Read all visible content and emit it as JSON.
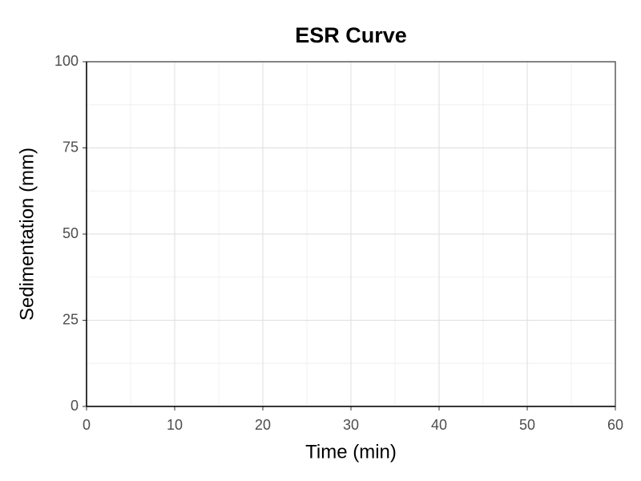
{
  "chart_data": {
    "type": "line",
    "title": "ESR Curve",
    "x_label": "Time (min)",
    "y_label": "Sedimentation (mm)",
    "xlim": [
      0,
      60
    ],
    "xticks": [
      0,
      10,
      20,
      30,
      40,
      50,
      60
    ],
    "ylim": [
      0,
      100
    ],
    "yticks": [
      0,
      25,
      50,
      75,
      100
    ],
    "grid": true,
    "minor_grid": true
  }
}
